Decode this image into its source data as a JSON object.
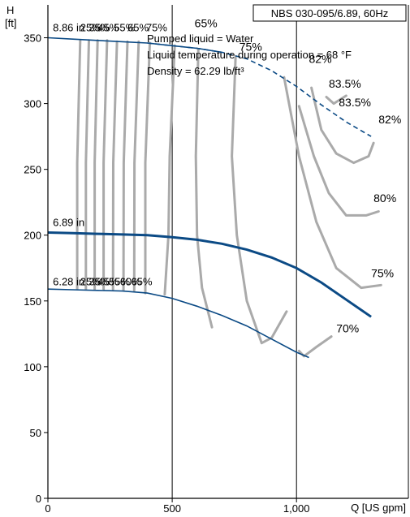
{
  "chart_data": {
    "type": "line",
    "title": "NBS 030-095/6.89, 60Hz",
    "notes": [
      "Pumped liquid = Water",
      "Liquid temperature during operation = 68 °F",
      "Density = 62.29 lb/ft³"
    ],
    "ylabel": [
      "H",
      "[ft]"
    ],
    "xlabel": "Q [US gpm]",
    "xlim": [
      0,
      1450
    ],
    "ylim": [
      0,
      375
    ],
    "x_ticks": [
      {
        "v": 0,
        "label": "0"
      },
      {
        "v": 500,
        "label": "500"
      },
      {
        "v": 1000,
        "label": "1,000"
      }
    ],
    "y_ticks": [
      0,
      50,
      100,
      150,
      200,
      250,
      300,
      350
    ],
    "grid": "x-major",
    "colors": {
      "head_curve": "#0b4a85",
      "efficiency": "#aaaaaa",
      "axis": "#000000"
    },
    "top_impeller_labels": [
      "8.86 in",
      "25%",
      "35%",
      "45%",
      "55%",
      "65%",
      "75%"
    ],
    "bottom_impeller_labels": [
      "6.28 in",
      "25%",
      "35%",
      "45%",
      "55%",
      "60%",
      "65%"
    ],
    "series": [
      {
        "role": "max-impeller",
        "x": [
          0,
          100,
          200,
          300,
          400,
          500,
          600,
          700
        ],
        "y": [
          350,
          349,
          348,
          347,
          346,
          344,
          342,
          339
        ]
      },
      {
        "role": "max-impeller-dashed",
        "x": [
          400,
          500,
          600,
          700,
          800,
          900,
          1000,
          1100,
          1200,
          1300
        ],
        "y": [
          346,
          344,
          342,
          339,
          334,
          325,
          313,
          299,
          286,
          275
        ]
      },
      {
        "role": "rated-impeller",
        "name": "6.89 in",
        "x": [
          0,
          100,
          200,
          300,
          400,
          500,
          600,
          700,
          800,
          900,
          1000,
          1100,
          1200,
          1300
        ],
        "y": [
          202,
          201.5,
          201,
          200.5,
          200,
          198.5,
          196.5,
          193.5,
          189,
          183,
          175,
          164,
          151,
          138
        ]
      },
      {
        "role": "min-impeller",
        "x": [
          0,
          100,
          200,
          300,
          400,
          500,
          600,
          700,
          800,
          900,
          1000,
          1050
        ],
        "y": [
          159,
          158.5,
          158,
          157.5,
          156,
          152,
          146,
          139,
          131,
          121,
          111,
          107
        ]
      }
    ],
    "efficiency_contours": [
      {
        "label": "",
        "x": [
          130,
          118,
          118
        ],
        "y": [
          348,
          255,
          159
        ]
      },
      {
        "label": "",
        "x": [
          165,
          153,
          153
        ],
        "y": [
          348,
          255,
          159
        ]
      },
      {
        "label": "",
        "x": [
          200,
          188,
          188
        ],
        "y": [
          348,
          255,
          159
        ]
      },
      {
        "label": "",
        "x": [
          238,
          224,
          224
        ],
        "y": [
          348,
          255,
          159
        ]
      },
      {
        "label": "",
        "x": [
          278,
          263,
          262
        ],
        "y": [
          347,
          255,
          159
        ]
      },
      {
        "label": "",
        "x": [
          320,
          305,
          304
        ],
        "y": [
          347,
          255,
          158
        ]
      },
      {
        "label": "",
        "x": [
          365,
          348,
          347
        ],
        "y": [
          347,
          255,
          158
        ]
      },
      {
        "label": "",
        "x": [
          410,
          392,
          392
        ],
        "y": [
          346,
          255,
          156
        ]
      },
      {
        "label": "",
        "x": [
          510,
          490,
          485,
          470
        ],
        "y": [
          344,
          260,
          200,
          155
        ]
      },
      {
        "label": "",
        "x": [
          605,
          595,
          600,
          620,
          660
        ],
        "y": [
          341,
          260,
          200,
          160,
          130
        ]
      },
      {
        "label": "",
        "x": [
          755,
          740,
          760,
          800,
          860,
          900,
          960
        ],
        "y": [
          336,
          260,
          200,
          150,
          118,
          122,
          142
        ]
      },
      {
        "label": "70%",
        "x": [
          1010,
          1030,
          1080,
          1140
        ],
        "y": [
          112,
          108,
          115,
          123
        ]
      },
      {
        "label": "75%",
        "x": [
          950,
          1010,
          1080,
          1160,
          1260,
          1340
        ],
        "y": [
          320,
          260,
          210,
          175,
          160,
          162
        ]
      },
      {
        "label": "80%",
        "x": [
          1010,
          1070,
          1130,
          1200,
          1280,
          1330
        ],
        "y": [
          298,
          260,
          232,
          215,
          215,
          218
        ]
      },
      {
        "label": "82%",
        "x": [
          1060,
          1100,
          1160,
          1230,
          1290,
          1310
        ],
        "y": [
          312,
          280,
          262,
          255,
          260,
          270
        ]
      },
      {
        "label": "",
        "x": [
          1120,
          1150,
          1200
        ],
        "y": [
          305,
          300,
          306
        ]
      }
    ],
    "efficiency_labels": [
      {
        "text": "65%",
        "x": 590,
        "y": 358
      },
      {
        "text": "75%",
        "x": 770,
        "y": 340
      },
      {
        "text": "82%",
        "x": 1050,
        "y": 331
      },
      {
        "text": "83.5%",
        "x": 1130,
        "y": 312
      },
      {
        "text": "83.5%",
        "x": 1170,
        "y": 298
      },
      {
        "text": "82%",
        "x": 1330,
        "y": 285
      },
      {
        "text": "80%",
        "x": 1310,
        "y": 225
      },
      {
        "text": "75%",
        "x": 1300,
        "y": 168
      },
      {
        "text": "70%",
        "x": 1160,
        "y": 126
      }
    ]
  }
}
